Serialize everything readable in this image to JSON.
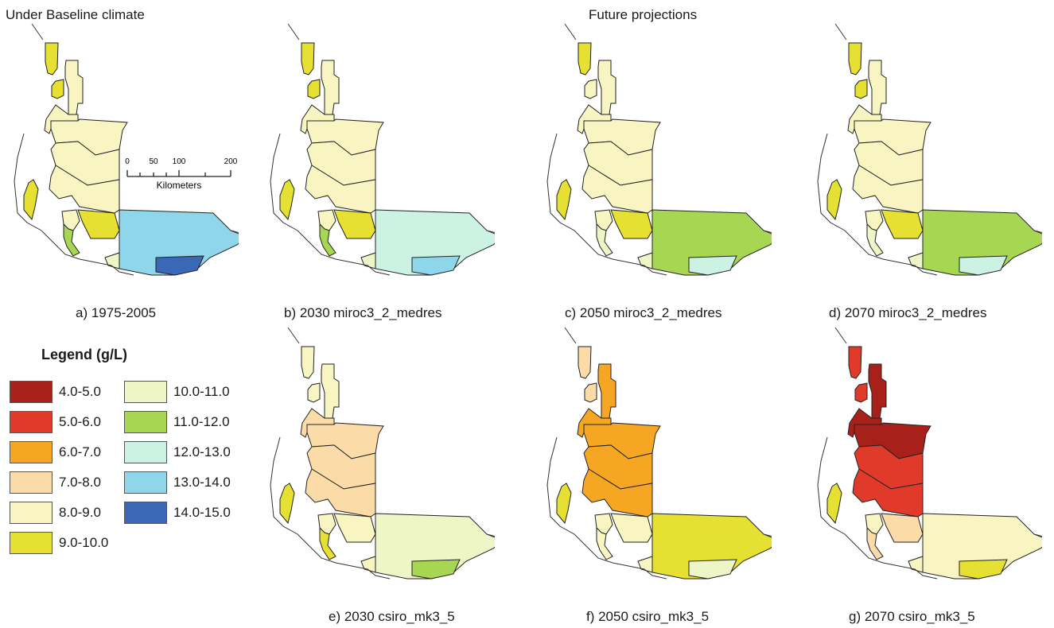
{
  "headers": {
    "baseline": "Under Baseline climate",
    "future": "Future projections"
  },
  "panels": [
    {
      "id": "a",
      "caption": "a)    1975-2005",
      "classes": [
        9,
        8,
        9,
        8,
        8,
        8,
        8,
        9,
        8,
        9,
        11,
        13,
        14,
        10
      ]
    },
    {
      "id": "b",
      "caption": "b) 2030 miroc3_2_medres",
      "classes": [
        9,
        8,
        9,
        8,
        8,
        8,
        8,
        9,
        8,
        9,
        11,
        12,
        13,
        10
      ]
    },
    {
      "id": "c",
      "caption": "c)  2050 miroc3_2_medres",
      "classes": [
        9,
        8,
        8,
        8,
        8,
        8,
        8,
        9,
        8,
        9,
        10,
        11,
        12,
        10
      ]
    },
    {
      "id": "d",
      "caption": "d)  2070 miroc3_2_medres",
      "classes": [
        9,
        8,
        9,
        8,
        8,
        8,
        8,
        9,
        8,
        9,
        10,
        11,
        12,
        10
      ]
    },
    {
      "id": "e",
      "caption": "e) 2030 csiro_mk3_5",
      "classes": [
        8,
        8,
        8,
        7,
        7,
        7,
        7,
        9,
        8,
        8,
        9,
        10,
        11,
        8
      ]
    },
    {
      "id": "f",
      "caption": "f) 2050 csiro_mk3_5",
      "classes": [
        7,
        6,
        7,
        6,
        6,
        6,
        6,
        9,
        8,
        8,
        8,
        9,
        10,
        8
      ]
    },
    {
      "id": "g",
      "caption": "g) 2070 csiro_mk3_5",
      "classes": [
        5,
        4,
        5,
        4,
        4,
        5,
        5,
        9,
        8,
        7,
        7,
        8,
        9,
        8
      ]
    }
  ],
  "legend": {
    "title": "Legend (g/L)",
    "items": [
      {
        "label": "4.0-5.0",
        "color": "#a8201a"
      },
      {
        "label": "5.0-6.0",
        "color": "#e03a2a"
      },
      {
        "label": "6.0-7.0",
        "color": "#f5a623"
      },
      {
        "label": "7.0-8.0",
        "color": "#fbdca8"
      },
      {
        "label": "8.0-9.0",
        "color": "#f8f5c2"
      },
      {
        "label": "9.0-10.0",
        "color": "#e6e033"
      },
      {
        "label": "10.0-11.0",
        "color": "#eef6c8"
      },
      {
        "label": "11.0-12.0",
        "color": "#a6d652"
      },
      {
        "label": "12.0-13.0",
        "color": "#cbf2e2"
      },
      {
        "label": "13.0-14.0",
        "color": "#8fd6ea"
      },
      {
        "label": "14.0-15.0",
        "color": "#3b67b7"
      }
    ]
  },
  "scale_bar": {
    "ticks": [
      "0",
      "50",
      "100",
      "200"
    ],
    "unit": "Kilometers"
  }
}
